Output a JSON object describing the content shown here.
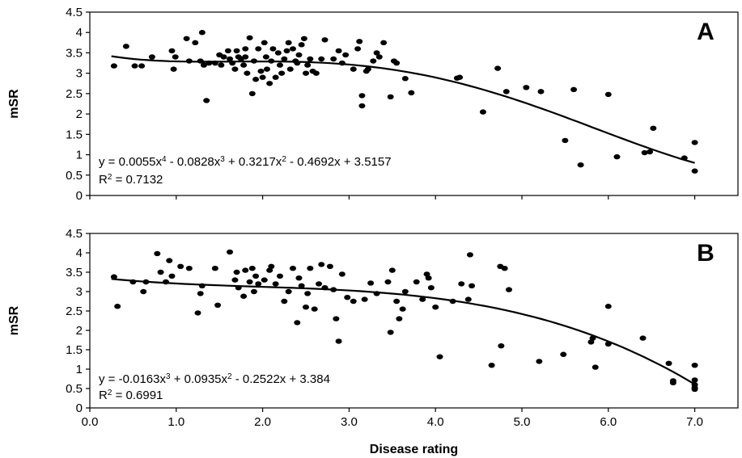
{
  "chart_data": [
    {
      "type": "scatter",
      "panel_label": "A",
      "ylabel": "mSR",
      "xlabel": "",
      "xlim": [
        0,
        7.5
      ],
      "ylim": [
        0,
        4.5
      ],
      "x_ticks": [],
      "y_ticks": [
        "0",
        "0.5",
        "1",
        "1.5",
        "2",
        "2.5",
        "3",
        "3.5",
        "4",
        "4.5"
      ],
      "grid": false,
      "equation": {
        "lead": "y = 0.0055x",
        "e1": "4",
        "mid": " - 0.0828x",
        "e2": "3",
        "mid2": " + 0.3217x",
        "e3": "2",
        "tail": " - 0.4692x + 3.5157"
      },
      "r2": {
        "prefix": "R",
        "sup": "2",
        "value": " = 0.7132"
      },
      "trendline": {
        "type": "polynomial",
        "coefficients": [
          0.0055,
          -0.0828,
          0.3217,
          -0.4692,
          3.5157
        ],
        "x_range": [
          0.25,
          7.0
        ]
      },
      "points": [
        [
          0.28,
          3.18
        ],
        [
          0.42,
          3.66
        ],
        [
          0.52,
          3.18
        ],
        [
          0.6,
          3.18
        ],
        [
          0.72,
          3.4
        ],
        [
          0.95,
          3.55
        ],
        [
          0.97,
          3.1
        ],
        [
          0.99,
          3.4
        ],
        [
          1.12,
          3.85
        ],
        [
          1.15,
          3.3
        ],
        [
          1.22,
          3.75
        ],
        [
          1.28,
          3.3
        ],
        [
          1.3,
          4.0
        ],
        [
          1.32,
          3.2
        ],
        [
          1.35,
          2.33
        ],
        [
          1.38,
          3.25
        ],
        [
          1.45,
          3.25
        ],
        [
          1.5,
          3.45
        ],
        [
          1.52,
          3.2
        ],
        [
          1.55,
          3.4
        ],
        [
          1.6,
          3.55
        ],
        [
          1.62,
          3.35
        ],
        [
          1.65,
          3.25
        ],
        [
          1.68,
          3.1
        ],
        [
          1.7,
          3.55
        ],
        [
          1.72,
          3.4
        ],
        [
          1.75,
          3.35
        ],
        [
          1.78,
          3.2
        ],
        [
          1.8,
          3.6
        ],
        [
          1.8,
          3.4
        ],
        [
          1.82,
          3.0
        ],
        [
          1.85,
          3.87
        ],
        [
          1.88,
          2.5
        ],
        [
          1.9,
          3.3
        ],
        [
          1.92,
          2.85
        ],
        [
          1.95,
          3.6
        ],
        [
          1.98,
          3.05
        ],
        [
          2.0,
          2.9
        ],
        [
          2.02,
          3.75
        ],
        [
          2.04,
          3.4
        ],
        [
          2.05,
          3.1
        ],
        [
          2.08,
          2.75
        ],
        [
          2.1,
          3.3
        ],
        [
          2.12,
          3.6
        ],
        [
          2.15,
          2.9
        ],
        [
          2.18,
          3.5
        ],
        [
          2.2,
          3.2
        ],
        [
          2.22,
          3.0
        ],
        [
          2.25,
          3.35
        ],
        [
          2.28,
          3.55
        ],
        [
          2.3,
          3.75
        ],
        [
          2.32,
          3.1
        ],
        [
          2.35,
          3.6
        ],
        [
          2.38,
          3.3
        ],
        [
          2.4,
          3.25
        ],
        [
          2.42,
          3.45
        ],
        [
          2.45,
          3.7
        ],
        [
          2.48,
          3.85
        ],
        [
          2.5,
          3.0
        ],
        [
          2.52,
          3.2
        ],
        [
          2.55,
          3.35
        ],
        [
          2.58,
          3.05
        ],
        [
          2.62,
          3.0
        ],
        [
          2.68,
          3.35
        ],
        [
          2.72,
          3.82
        ],
        [
          2.82,
          3.35
        ],
        [
          2.88,
          3.55
        ],
        [
          2.92,
          3.25
        ],
        [
          2.96,
          3.45
        ],
        [
          3.05,
          3.1
        ],
        [
          3.1,
          3.6
        ],
        [
          3.12,
          3.78
        ],
        [
          3.15,
          2.45
        ],
        [
          3.15,
          2.2
        ],
        [
          3.2,
          3.05
        ],
        [
          3.22,
          3.1
        ],
        [
          3.28,
          3.3
        ],
        [
          3.32,
          3.5
        ],
        [
          3.35,
          3.4
        ],
        [
          3.4,
          3.75
        ],
        [
          3.48,
          2.42
        ],
        [
          3.52,
          3.3
        ],
        [
          3.55,
          3.25
        ],
        [
          3.65,
          2.87
        ],
        [
          3.72,
          2.52
        ],
        [
          4.25,
          2.88
        ],
        [
          4.28,
          2.9
        ],
        [
          4.55,
          2.05
        ],
        [
          4.72,
          3.12
        ],
        [
          4.82,
          2.55
        ],
        [
          5.05,
          2.65
        ],
        [
          5.22,
          2.55
        ],
        [
          5.5,
          1.35
        ],
        [
          5.6,
          2.6
        ],
        [
          5.68,
          0.75
        ],
        [
          6.0,
          2.48
        ],
        [
          6.1,
          0.95
        ],
        [
          6.42,
          1.05
        ],
        [
          6.48,
          1.07
        ],
        [
          6.52,
          1.65
        ],
        [
          6.88,
          0.92
        ],
        [
          7.0,
          1.3
        ],
        [
          7.0,
          0.6
        ]
      ]
    },
    {
      "type": "scatter",
      "panel_label": "B",
      "ylabel": "mSR",
      "xlabel": "Disease rating",
      "xlim": [
        0,
        7.5
      ],
      "ylim": [
        0,
        4.5
      ],
      "x_ticks": [
        "0.0",
        "1.0",
        "2.0",
        "3.0",
        "4.0",
        "5.0",
        "6.0",
        "7.0"
      ],
      "y_ticks": [
        "0",
        "0.5",
        "1",
        "1.5",
        "2",
        "2.5",
        "3",
        "3.5",
        "4",
        "4.5"
      ],
      "grid": false,
      "equation": {
        "lead": "y = -0.0163x",
        "e1": "3",
        "mid": " + 0.0935x",
        "e2": "2",
        "mid2": " - 0.2522x + 3.384",
        "e3": "",
        "tail": ""
      },
      "r2": {
        "prefix": "R",
        "sup": "2",
        "value": " = 0.6991"
      },
      "trendline": {
        "type": "polynomial",
        "coefficients": [
          -0.0163,
          0.0935,
          -0.2522,
          3.384
        ],
        "x_range": [
          0.25,
          7.0
        ]
      },
      "points": [
        [
          0.28,
          3.38
        ],
        [
          0.32,
          2.62
        ],
        [
          0.5,
          3.25
        ],
        [
          0.62,
          3.0
        ],
        [
          0.65,
          3.25
        ],
        [
          0.78,
          3.98
        ],
        [
          0.82,
          3.5
        ],
        [
          0.88,
          3.25
        ],
        [
          0.92,
          3.8
        ],
        [
          0.95,
          3.4
        ],
        [
          1.05,
          3.65
        ],
        [
          1.15,
          3.6
        ],
        [
          1.25,
          2.45
        ],
        [
          1.28,
          2.95
        ],
        [
          1.3,
          3.15
        ],
        [
          1.45,
          3.6
        ],
        [
          1.48,
          2.65
        ],
        [
          1.62,
          4.02
        ],
        [
          1.68,
          3.3
        ],
        [
          1.7,
          3.5
        ],
        [
          1.72,
          3.1
        ],
        [
          1.78,
          2.88
        ],
        [
          1.8,
          3.55
        ],
        [
          1.85,
          3.25
        ],
        [
          1.88,
          3.6
        ],
        [
          1.9,
          3.0
        ],
        [
          1.92,
          3.4
        ],
        [
          1.95,
          3.2
        ],
        [
          2.02,
          3.3
        ],
        [
          2.08,
          3.55
        ],
        [
          2.1,
          3.65
        ],
        [
          2.15,
          3.2
        ],
        [
          2.2,
          3.4
        ],
        [
          2.25,
          2.75
        ],
        [
          2.3,
          3.0
        ],
        [
          2.35,
          3.6
        ],
        [
          2.4,
          2.2
        ],
        [
          2.42,
          3.35
        ],
        [
          2.45,
          3.15
        ],
        [
          2.5,
          2.6
        ],
        [
          2.52,
          2.95
        ],
        [
          2.55,
          3.6
        ],
        [
          2.6,
          2.55
        ],
        [
          2.65,
          3.2
        ],
        [
          2.68,
          3.7
        ],
        [
          2.72,
          3.1
        ],
        [
          2.78,
          3.65
        ],
        [
          2.82,
          3.05
        ],
        [
          2.85,
          2.3
        ],
        [
          2.88,
          1.72
        ],
        [
          2.92,
          3.45
        ],
        [
          2.98,
          2.85
        ],
        [
          3.05,
          2.75
        ],
        [
          3.18,
          2.8
        ],
        [
          3.25,
          3.22
        ],
        [
          3.32,
          2.95
        ],
        [
          3.45,
          3.25
        ],
        [
          3.48,
          1.95
        ],
        [
          3.5,
          3.55
        ],
        [
          3.55,
          2.75
        ],
        [
          3.58,
          2.3
        ],
        [
          3.62,
          2.55
        ],
        [
          3.65,
          3.0
        ],
        [
          3.78,
          3.25
        ],
        [
          3.85,
          2.8
        ],
        [
          3.9,
          3.45
        ],
        [
          3.92,
          3.35
        ],
        [
          3.95,
          3.1
        ],
        [
          4.0,
          2.6
        ],
        [
          4.05,
          1.32
        ],
        [
          4.2,
          2.75
        ],
        [
          4.3,
          3.2
        ],
        [
          4.38,
          2.8
        ],
        [
          4.4,
          3.95
        ],
        [
          4.42,
          3.15
        ],
        [
          4.65,
          1.1
        ],
        [
          4.75,
          3.65
        ],
        [
          4.76,
          1.6
        ],
        [
          4.8,
          3.6
        ],
        [
          4.85,
          3.05
        ],
        [
          5.2,
          1.2
        ],
        [
          5.48,
          1.38
        ],
        [
          5.8,
          1.7
        ],
        [
          5.82,
          1.8
        ],
        [
          5.85,
          1.05
        ],
        [
          6.0,
          1.65
        ],
        [
          6.0,
          2.62
        ],
        [
          6.4,
          1.8
        ],
        [
          6.7,
          1.15
        ],
        [
          6.75,
          0.7
        ],
        [
          6.75,
          0.65
        ],
        [
          7.0,
          1.1
        ],
        [
          7.0,
          0.72
        ],
        [
          7.0,
          0.6
        ],
        [
          7.0,
          0.52
        ],
        [
          7.0,
          0.48
        ]
      ]
    }
  ]
}
